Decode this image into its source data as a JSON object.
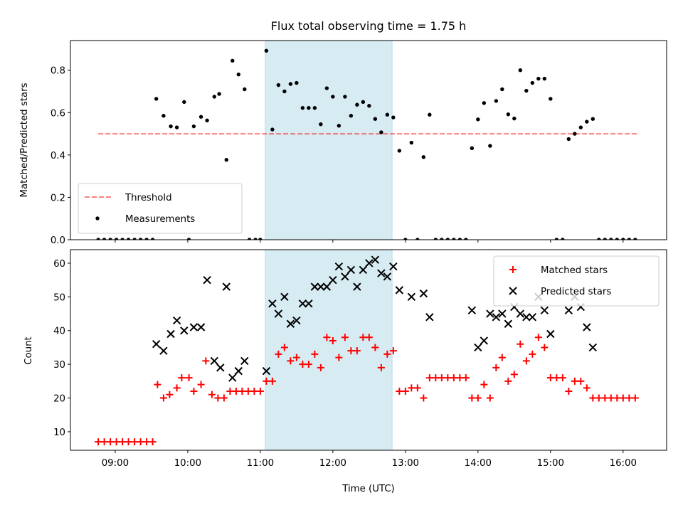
{
  "title": "Flux total observing time = 1.75 h",
  "xlabel": "Time (UTC)",
  "shaded_region": {
    "start": "11:04",
    "end": "12:49",
    "color": "#add8e6"
  },
  "chart_data": [
    {
      "type": "scatter",
      "ylabel": "Matched/Predicted stars",
      "xlim": [
        "08:23",
        "16:36"
      ],
      "ylim": [
        0,
        0.94
      ],
      "yticks": [
        "0.0",
        "0.2",
        "0.4",
        "0.6",
        "0.8"
      ],
      "xticks": [
        "09:00",
        "10:00",
        "11:00",
        "12:00",
        "13:00",
        "14:00",
        "15:00",
        "16:00"
      ],
      "legend": {
        "placement": "lower-left"
      },
      "threshold": {
        "name": "Threshold",
        "value": 0.5,
        "x_start": "08:46",
        "x_end": "16:12",
        "color": "#ff0000",
        "alpha": 0.5
      },
      "series": [
        {
          "name": "Measurements",
          "color": "#000000",
          "points": [
            [
              "08:46",
              0
            ],
            [
              "08:51",
              0
            ],
            [
              "08:56",
              0
            ],
            [
              "09:01",
              0
            ],
            [
              "09:06",
              0
            ],
            [
              "09:11",
              0
            ],
            [
              "09:16",
              0
            ],
            [
              "09:21",
              0
            ],
            [
              "09:26",
              0
            ],
            [
              "09:31",
              0
            ],
            [
              "09:34",
              0.665
            ],
            [
              "09:40",
              0.585
            ],
            [
              "09:46",
              0.535
            ],
            [
              "09:51",
              0.53
            ],
            [
              "09:57",
              0.65
            ],
            [
              "10:01",
              0
            ],
            [
              "10:05",
              0.535
            ],
            [
              "10:11",
              0.58
            ],
            [
              "10:16",
              0.563
            ],
            [
              "10:22",
              0.675
            ],
            [
              "10:26",
              0.688
            ],
            [
              "10:32",
              0.377
            ],
            [
              "10:37",
              0.845
            ],
            [
              "10:42",
              0.78
            ],
            [
              "10:47",
              0.71
            ],
            [
              "10:51",
              0
            ],
            [
              "10:56",
              0
            ],
            [
              "11:00",
              0
            ],
            [
              "11:05",
              0.892
            ],
            [
              "11:10",
              0.52
            ],
            [
              "11:15",
              0.73
            ],
            [
              "11:20",
              0.7
            ],
            [
              "11:25",
              0.735
            ],
            [
              "11:30",
              0.74
            ],
            [
              "11:35",
              0.622
            ],
            [
              "11:40",
              0.622
            ],
            [
              "11:45",
              0.622
            ],
            [
              "11:50",
              0.545
            ],
            [
              "11:55",
              0.715
            ],
            [
              "12:00",
              0.675
            ],
            [
              "12:05",
              0.538
            ],
            [
              "12:10",
              0.675
            ],
            [
              "12:15",
              0.585
            ],
            [
              "12:20",
              0.637
            ],
            [
              "12:25",
              0.65
            ],
            [
              "12:30",
              0.632
            ],
            [
              "12:35",
              0.57
            ],
            [
              "12:40",
              0.507
            ],
            [
              "12:45",
              0.59
            ],
            [
              "12:50",
              0.577
            ],
            [
              "12:55",
              0.42
            ],
            [
              "13:00",
              0
            ],
            [
              "13:05",
              0.458
            ],
            [
              "13:10",
              0
            ],
            [
              "13:15",
              0.39
            ],
            [
              "13:20",
              0.59
            ],
            [
              "13:25",
              0
            ],
            [
              "13:30",
              0
            ],
            [
              "13:35",
              0
            ],
            [
              "13:40",
              0
            ],
            [
              "13:45",
              0
            ],
            [
              "13:50",
              0
            ],
            [
              "13:55",
              0.432
            ],
            [
              "14:00",
              0.568
            ],
            [
              "14:05",
              0.645
            ],
            [
              "14:10",
              0.443
            ],
            [
              "14:15",
              0.655
            ],
            [
              "14:20",
              0.71
            ],
            [
              "14:25",
              0.592
            ],
            [
              "14:30",
              0.572
            ],
            [
              "14:35",
              0.8
            ],
            [
              "14:40",
              0.703
            ],
            [
              "14:45",
              0.74
            ],
            [
              "14:50",
              0.76
            ],
            [
              "14:55",
              0.76
            ],
            [
              "15:00",
              0.665
            ],
            [
              "15:05",
              0
            ],
            [
              "15:10",
              0
            ],
            [
              "15:15",
              0.475
            ],
            [
              "15:20",
              0.5
            ],
            [
              "15:25",
              0.53
            ],
            [
              "15:30",
              0.557
            ],
            [
              "15:35",
              0.57
            ],
            [
              "15:40",
              0
            ],
            [
              "15:45",
              0
            ],
            [
              "15:50",
              0
            ],
            [
              "15:55",
              0
            ],
            [
              "16:00",
              0
            ],
            [
              "16:05",
              0
            ],
            [
              "16:10",
              0
            ]
          ]
        }
      ]
    },
    {
      "type": "scatter",
      "ylabel": "Count",
      "xlim": [
        "08:23",
        "16:36"
      ],
      "ylim": [
        4.5,
        64
      ],
      "yticks": [
        "10",
        "20",
        "30",
        "40",
        "50",
        "60"
      ],
      "xticks": [
        "09:00",
        "10:00",
        "11:00",
        "12:00",
        "13:00",
        "14:00",
        "15:00",
        "16:00"
      ],
      "legend": {
        "placement": "top-right"
      },
      "series": [
        {
          "name": "Matched stars",
          "marker": "+",
          "color": "#ff0000",
          "points": [
            [
              "08:46",
              7
            ],
            [
              "08:51",
              7
            ],
            [
              "08:56",
              7
            ],
            [
              "09:01",
              7
            ],
            [
              "09:06",
              7
            ],
            [
              "09:11",
              7
            ],
            [
              "09:16",
              7
            ],
            [
              "09:21",
              7
            ],
            [
              "09:26",
              7
            ],
            [
              "09:31",
              7
            ],
            [
              "09:35",
              24
            ],
            [
              "09:40",
              20
            ],
            [
              "09:45",
              21
            ],
            [
              "09:51",
              23
            ],
            [
              "09:55",
              26
            ],
            [
              "10:01",
              26
            ],
            [
              "10:05",
              22
            ],
            [
              "10:11",
              24
            ],
            [
              "10:15",
              31
            ],
            [
              "10:20",
              21
            ],
            [
              "10:25",
              20
            ],
            [
              "10:30",
              20
            ],
            [
              "10:35",
              22
            ],
            [
              "10:40",
              22
            ],
            [
              "10:45",
              22
            ],
            [
              "10:50",
              22
            ],
            [
              "10:55",
              22
            ],
            [
              "11:00",
              22
            ],
            [
              "11:05",
              25
            ],
            [
              "11:10",
              25
            ],
            [
              "11:15",
              33
            ],
            [
              "11:20",
              35
            ],
            [
              "11:25",
              31
            ],
            [
              "11:30",
              32
            ],
            [
              "11:35",
              30
            ],
            [
              "11:40",
              30
            ],
            [
              "11:45",
              33
            ],
            [
              "11:50",
              29
            ],
            [
              "11:55",
              38
            ],
            [
              "12:00",
              37
            ],
            [
              "12:05",
              32
            ],
            [
              "12:10",
              38
            ],
            [
              "12:15",
              34
            ],
            [
              "12:20",
              34
            ],
            [
              "12:25",
              38
            ],
            [
              "12:30",
              38
            ],
            [
              "12:35",
              35
            ],
            [
              "12:40",
              29
            ],
            [
              "12:45",
              33
            ],
            [
              "12:50",
              34
            ],
            [
              "12:55",
              22
            ],
            [
              "13:00",
              22
            ],
            [
              "13:05",
              23
            ],
            [
              "13:10",
              23
            ],
            [
              "13:15",
              20
            ],
            [
              "13:20",
              26
            ],
            [
              "13:25",
              26
            ],
            [
              "13:30",
              26
            ],
            [
              "13:35",
              26
            ],
            [
              "13:40",
              26
            ],
            [
              "13:45",
              26
            ],
            [
              "13:50",
              26
            ],
            [
              "13:55",
              20
            ],
            [
              "14:00",
              20
            ],
            [
              "14:05",
              24
            ],
            [
              "14:10",
              20
            ],
            [
              "14:15",
              29
            ],
            [
              "14:20",
              32
            ],
            [
              "14:25",
              25
            ],
            [
              "14:30",
              27
            ],
            [
              "14:35",
              36
            ],
            [
              "14:40",
              31
            ],
            [
              "14:45",
              33
            ],
            [
              "14:50",
              38
            ],
            [
              "14:55",
              35
            ],
            [
              "15:00",
              26
            ],
            [
              "15:05",
              26
            ],
            [
              "15:10",
              26
            ],
            [
              "15:15",
              22
            ],
            [
              "15:20",
              25
            ],
            [
              "15:25",
              25
            ],
            [
              "15:30",
              23
            ],
            [
              "15:35",
              20
            ],
            [
              "15:40",
              20
            ],
            [
              "15:45",
              20
            ],
            [
              "15:50",
              20
            ],
            [
              "15:55",
              20
            ],
            [
              "16:00",
              20
            ],
            [
              "16:05",
              20
            ],
            [
              "16:10",
              20
            ]
          ]
        },
        {
          "name": "Predicted stars",
          "marker": "x",
          "color": "#000000",
          "points": [
            [
              "09:34",
              36
            ],
            [
              "09:40",
              34
            ],
            [
              "09:46",
              39
            ],
            [
              "09:51",
              43
            ],
            [
              "09:57",
              40
            ],
            [
              "10:05",
              41
            ],
            [
              "10:11",
              41
            ],
            [
              "10:16",
              55
            ],
            [
              "10:22",
              31
            ],
            [
              "10:27",
              29
            ],
            [
              "10:32",
              53
            ],
            [
              "10:37",
              26
            ],
            [
              "10:42",
              28
            ],
            [
              "10:47",
              31
            ],
            [
              "11:05",
              28
            ],
            [
              "11:10",
              48
            ],
            [
              "11:15",
              45
            ],
            [
              "11:20",
              50
            ],
            [
              "11:25",
              42
            ],
            [
              "11:30",
              43
            ],
            [
              "11:35",
              48
            ],
            [
              "11:40",
              48
            ],
            [
              "11:45",
              53
            ],
            [
              "11:50",
              53
            ],
            [
              "11:55",
              53
            ],
            [
              "12:00",
              55
            ],
            [
              "12:05",
              59
            ],
            [
              "12:10",
              56
            ],
            [
              "12:15",
              58
            ],
            [
              "12:20",
              53
            ],
            [
              "12:25",
              58
            ],
            [
              "12:30",
              60
            ],
            [
              "12:35",
              61
            ],
            [
              "12:40",
              57
            ],
            [
              "12:45",
              56
            ],
            [
              "12:50",
              59
            ],
            [
              "12:55",
              52
            ],
            [
              "13:05",
              50
            ],
            [
              "13:15",
              51
            ],
            [
              "13:20",
              44
            ],
            [
              "13:55",
              46
            ],
            [
              "14:00",
              35
            ],
            [
              "14:05",
              37
            ],
            [
              "14:10",
              45
            ],
            [
              "14:15",
              44
            ],
            [
              "14:20",
              45
            ],
            [
              "14:25",
              42
            ],
            [
              "14:30",
              47
            ],
            [
              "14:35",
              45
            ],
            [
              "14:40",
              44
            ],
            [
              "14:45",
              44
            ],
            [
              "14:50",
              50
            ],
            [
              "14:55",
              46
            ],
            [
              "15:00",
              39
            ],
            [
              "15:15",
              46
            ],
            [
              "15:20",
              50
            ],
            [
              "15:25",
              47
            ],
            [
              "15:30",
              41
            ],
            [
              "15:35",
              35
            ]
          ]
        }
      ]
    }
  ]
}
